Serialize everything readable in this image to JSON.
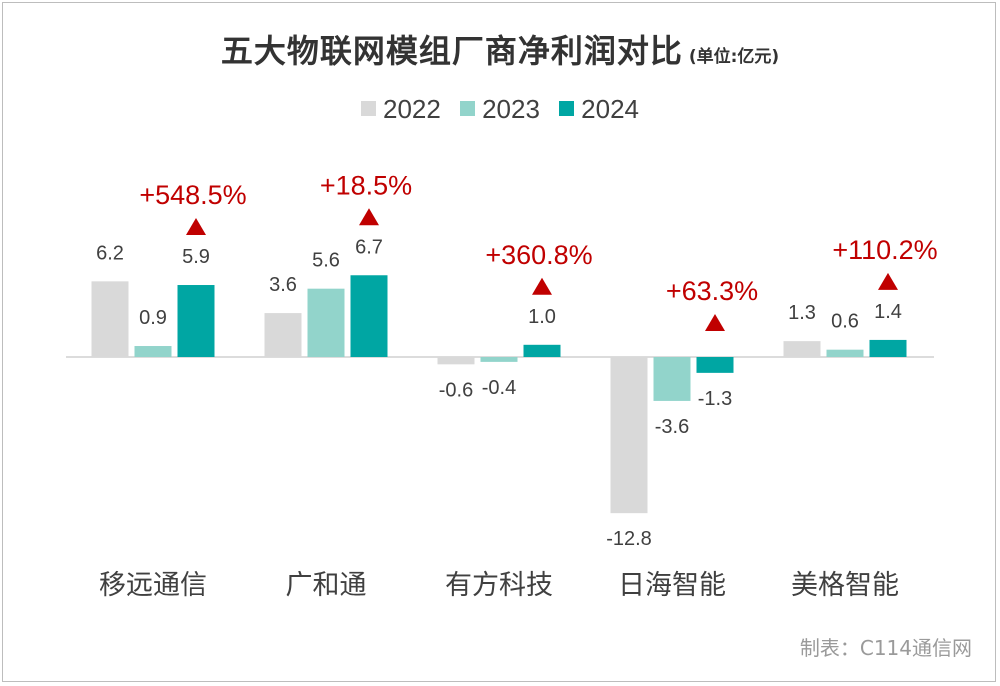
{
  "title": {
    "main": "五大物联网模组厂商净利润对比",
    "unit": "(单位:亿元)"
  },
  "source": "制表：C114通信网",
  "colors": {
    "2022": "#d9d9d9",
    "2023": "#92d4cb",
    "2024": "#00a6a3",
    "growth": "#c00000"
  },
  "chart_data": {
    "type": "bar",
    "title": "五大物联网模组厂商净利润对比",
    "unit": "亿元",
    "categories": [
      "移远通信",
      "广和通",
      "有方科技",
      "日海智能",
      "美格智能"
    ],
    "series": [
      {
        "name": "2022",
        "values": [
          6.2,
          3.6,
          -0.6,
          -12.8,
          1.3
        ],
        "labels": [
          "6.2",
          "3.6",
          "-0.6",
          "-12.8",
          "1.3"
        ]
      },
      {
        "name": "2023",
        "values": [
          0.9,
          5.6,
          -0.4,
          -3.6,
          0.6
        ],
        "labels": [
          "0.9",
          "5.6",
          "-0.4",
          "-3.6",
          "0.6"
        ]
      },
      {
        "name": "2024",
        "values": [
          5.9,
          6.7,
          1.0,
          -1.3,
          1.4
        ],
        "labels": [
          "5.9",
          "6.7",
          "1.0",
          "-1.3",
          "1.4"
        ]
      }
    ],
    "growth": [
      "+548.5%",
      "+18.5%",
      "+360.8%",
      "+63.3%",
      "+110.2%"
    ],
    "growth_marker": "▲",
    "ylim": [
      -12.8,
      6.7
    ],
    "legend": "top-center",
    "grid": false
  }
}
